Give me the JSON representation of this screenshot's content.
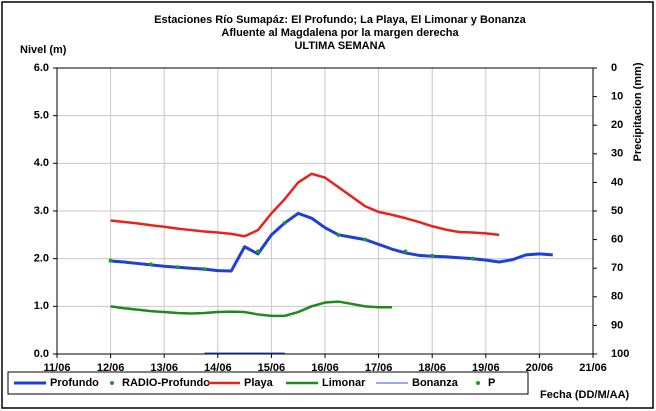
{
  "chart_data": {
    "type": "line",
    "title": [
      "Estaciones Río Sumapáz: El Profundo; La Playa, El Limonar y Bonanza",
      "Afluente al Magdalena por la margen derecha",
      "ULTIMA SEMANA"
    ],
    "ylabel": "Nivel (m)",
    "y2label": "Precipitacion (mm)",
    "xlabel": "Fecha (DD/M/AA)",
    "x": [
      12.0,
      12.25,
      12.5,
      12.75,
      13.0,
      13.25,
      13.5,
      13.75,
      14.0,
      14.25,
      14.5,
      14.75,
      15.0,
      15.25,
      15.5,
      15.75,
      16.0,
      16.25,
      16.5,
      16.75,
      17.0,
      17.25,
      17.5,
      17.75,
      18.0,
      18.25,
      18.5,
      18.75,
      19.0,
      19.25,
      19.5,
      19.75,
      20.0,
      20.25
    ],
    "xlim": [
      11,
      21
    ],
    "xticks": [
      {
        "value": 11,
        "label": "11/06"
      },
      {
        "value": 12,
        "label": "12/06"
      },
      {
        "value": 13,
        "label": "13/06"
      },
      {
        "value": 14,
        "label": "14/06"
      },
      {
        "value": 15,
        "label": "15/06"
      },
      {
        "value": 16,
        "label": "16/06"
      },
      {
        "value": 17,
        "label": "17/06"
      },
      {
        "value": 18,
        "label": "18/06"
      },
      {
        "value": 19,
        "label": "19/06"
      },
      {
        "value": 20,
        "label": "20/06"
      },
      {
        "value": 21,
        "label": "21/06"
      }
    ],
    "ylim": [
      0,
      6
    ],
    "yticks": [
      {
        "value": 0,
        "label": "0.0"
      },
      {
        "value": 1,
        "label": "1.0"
      },
      {
        "value": 2,
        "label": "2.0"
      },
      {
        "value": 3,
        "label": "3.0"
      },
      {
        "value": 4,
        "label": "4.0"
      },
      {
        "value": 5,
        "label": "5.0"
      },
      {
        "value": 6,
        "label": "6.0"
      }
    ],
    "y2lim": [
      100,
      0
    ],
    "y2ticks": [
      0,
      10,
      20,
      30,
      40,
      50,
      60,
      70,
      80,
      90,
      100
    ],
    "grid": true,
    "legend": "bottom",
    "series": [
      {
        "name": "Profundo",
        "color": "#1f3fd6",
        "style": "line",
        "width": 3,
        "values": [
          1.95,
          1.93,
          1.9,
          1.87,
          1.84,
          1.82,
          1.8,
          1.78,
          1.75,
          1.74,
          2.25,
          2.1,
          2.5,
          2.75,
          2.95,
          2.85,
          2.65,
          2.5,
          2.45,
          2.4,
          2.3,
          2.2,
          2.12,
          2.07,
          2.05,
          2.04,
          2.02,
          2.0,
          1.97,
          1.93,
          1.98,
          2.08,
          2.1,
          2.08
        ]
      },
      {
        "name": "RADIO-Profundo",
        "color": "#1f9a1f",
        "style": "dots",
        "width": 2,
        "values": [
          1.96,
          null,
          null,
          1.88,
          null,
          1.82,
          null,
          1.78,
          null,
          null,
          null,
          2.15,
          null,
          2.75,
          null,
          null,
          null,
          2.5,
          null,
          2.4,
          null,
          null,
          2.15,
          null,
          2.06,
          null,
          null,
          2.0,
          null,
          null,
          null,
          null,
          null,
          null
        ]
      },
      {
        "name": "Playa",
        "color": "#e8231d",
        "style": "line",
        "width": 2.5,
        "values": [
          2.8,
          2.77,
          2.74,
          2.7,
          2.67,
          2.63,
          2.6,
          2.57,
          2.55,
          2.52,
          2.47,
          2.6,
          2.95,
          3.25,
          3.6,
          3.78,
          3.7,
          3.5,
          3.3,
          3.1,
          2.98,
          2.92,
          2.85,
          2.77,
          2.68,
          2.61,
          2.56,
          2.55,
          2.53,
          2.5,
          null,
          null,
          null,
          null
        ]
      },
      {
        "name": "Limonar",
        "color": "#1c8a1c",
        "style": "line",
        "width": 2.5,
        "values": [
          1.0,
          0.96,
          0.93,
          0.9,
          0.88,
          0.86,
          0.85,
          0.86,
          0.88,
          0.89,
          0.88,
          0.83,
          0.8,
          0.8,
          0.88,
          1.0,
          1.08,
          1.1,
          1.05,
          1.0,
          0.98,
          0.98,
          null,
          null,
          null,
          null,
          null,
          null,
          null,
          null,
          null,
          null,
          null,
          null
        ]
      },
      {
        "name": "Bonanza",
        "color": "#3a4fd8",
        "style": "line",
        "width": 1,
        "values": [
          null,
          null,
          null,
          null,
          null,
          null,
          null,
          0.02,
          0.02,
          0.02,
          0.02,
          0.02,
          0.02,
          0.02,
          null,
          null,
          null,
          null,
          null,
          null,
          null,
          null,
          null,
          null,
          null,
          null,
          null,
          null,
          null,
          null,
          null,
          null,
          null,
          null
        ]
      },
      {
        "name": "P",
        "color": "#1f9a1f",
        "style": "dots",
        "width": 2,
        "axis": "y2",
        "values": [
          null,
          null,
          null,
          null,
          null,
          null,
          null,
          null,
          null,
          null,
          null,
          null,
          null,
          null,
          null,
          null,
          null,
          null,
          null,
          null,
          null,
          null,
          null,
          null,
          null,
          null,
          null,
          null,
          null,
          null,
          null,
          null,
          null,
          null
        ]
      }
    ]
  }
}
